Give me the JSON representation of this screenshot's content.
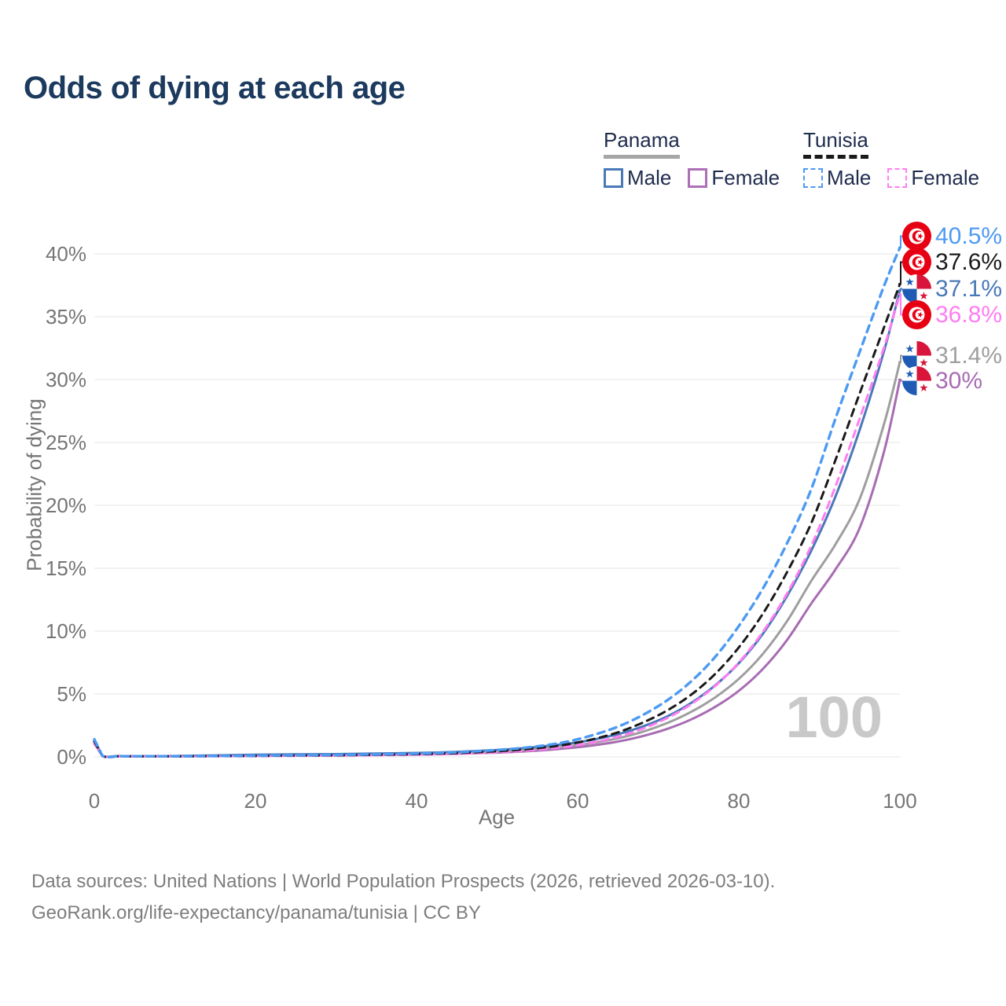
{
  "title": "Odds of dying at each age",
  "legend": {
    "groups": [
      {
        "name": "Panama",
        "line_color": "#a6a6a6",
        "line_style": "solid",
        "items": [
          {
            "label": "Male",
            "color": "#4a79b8"
          },
          {
            "label": "Female",
            "color": "#ad6fb5"
          }
        ]
      },
      {
        "name": "Tunisia",
        "line_color": "#1a1a1a",
        "line_style": "dashed",
        "items": [
          {
            "label": "Male",
            "color": "#4d9af2"
          },
          {
            "label": "Female",
            "color": "#ff7df2"
          }
        ]
      }
    ]
  },
  "chart_data": {
    "type": "line",
    "title": "Odds of dying at each age",
    "xlabel": "Age",
    "ylabel": "Probability of dying",
    "xlim": [
      0,
      100
    ],
    "ylim": [
      0,
      42
    ],
    "x_ticks": [
      0,
      20,
      40,
      60,
      80,
      100
    ],
    "y_ticks": [
      "0%",
      "5%",
      "10%",
      "15%",
      "20%",
      "25%",
      "30%",
      "35%",
      "40%"
    ],
    "grid": "horizontal",
    "legend_position": "top-right",
    "watermark": "100",
    "ages": [
      0,
      1,
      3,
      5,
      10,
      15,
      20,
      25,
      30,
      35,
      40,
      45,
      50,
      53,
      56,
      59,
      62,
      65,
      68,
      71,
      74,
      77,
      80,
      83,
      86,
      89,
      92,
      95,
      98,
      100
    ],
    "series": [
      {
        "name": "Panama Female",
        "country": "Panama",
        "sex": "Female",
        "color": "#a76cb2",
        "dash": "solid",
        "values": [
          1.05,
          0.08,
          0.05,
          0.04,
          0.05,
          0.06,
          0.08,
          0.1,
          0.12,
          0.15,
          0.19,
          0.25,
          0.34,
          0.42,
          0.54,
          0.7,
          0.92,
          1.22,
          1.64,
          2.2,
          2.95,
          3.95,
          5.25,
          7.0,
          9.3,
          12.2,
          14.9,
          18.2,
          24.2,
          30.0
        ],
        "end_value": 30.0
      },
      {
        "name": "Panama Both sexes",
        "country": "Panama",
        "sex": "Both",
        "color": "#9e9e9e",
        "dash": "solid",
        "values": [
          1.2,
          0.09,
          0.06,
          0.05,
          0.06,
          0.09,
          0.12,
          0.15,
          0.17,
          0.2,
          0.24,
          0.31,
          0.42,
          0.52,
          0.66,
          0.85,
          1.12,
          1.48,
          1.98,
          2.66,
          3.55,
          4.7,
          6.2,
          8.2,
          10.8,
          14.0,
          16.9,
          20.5,
          26.4,
          31.4
        ],
        "end_value": 31.4
      },
      {
        "name": "Panama Male",
        "country": "Panama",
        "sex": "Male",
        "color": "#4a79b8",
        "dash": "solid",
        "values": [
          1.3,
          0.1,
          0.07,
          0.06,
          0.07,
          0.12,
          0.17,
          0.2,
          0.22,
          0.26,
          0.31,
          0.4,
          0.55,
          0.68,
          0.86,
          1.06,
          1.38,
          1.8,
          2.4,
          3.18,
          4.25,
          5.65,
          7.45,
          9.8,
          12.8,
          16.4,
          20.7,
          26.0,
          32.2,
          37.1
        ],
        "end_value": 37.1
      },
      {
        "name": "Tunisia Female",
        "country": "Tunisia",
        "sex": "Female",
        "color": "#ff7df2",
        "dash": "dashed",
        "values": [
          1.1,
          0.07,
          0.04,
          0.04,
          0.04,
          0.05,
          0.06,
          0.08,
          0.1,
          0.13,
          0.17,
          0.24,
          0.36,
          0.47,
          0.62,
          0.84,
          1.16,
          1.6,
          2.22,
          3.05,
          4.15,
          5.6,
          7.5,
          9.95,
          13.0,
          16.8,
          21.5,
          26.9,
          32.5,
          36.8
        ],
        "end_value": 36.8
      },
      {
        "name": "Tunisia Both sexes",
        "country": "Tunisia",
        "sex": "Both",
        "color": "#1a1a1a",
        "dash": "dashed",
        "values": [
          1.25,
          0.08,
          0.04,
          0.04,
          0.04,
          0.06,
          0.08,
          0.11,
          0.13,
          0.17,
          0.22,
          0.3,
          0.45,
          0.58,
          0.76,
          1.02,
          1.42,
          1.95,
          2.7,
          3.65,
          4.9,
          6.55,
          8.7,
          11.4,
          14.7,
          18.6,
          23.6,
          28.9,
          34.1,
          37.6
        ],
        "end_value": 37.6
      },
      {
        "name": "Tunisia Male",
        "country": "Tunisia",
        "sex": "Male",
        "color": "#4d9af2",
        "dash": "dashed",
        "values": [
          1.4,
          0.09,
          0.05,
          0.05,
          0.05,
          0.07,
          0.1,
          0.13,
          0.16,
          0.2,
          0.26,
          0.36,
          0.55,
          0.7,
          0.92,
          1.25,
          1.75,
          2.4,
          3.3,
          4.45,
          5.95,
          7.9,
          10.4,
          13.4,
          17.0,
          21.3,
          26.9,
          32.2,
          37.4,
          40.5
        ],
        "end_value": 40.5
      }
    ],
    "end_labels": [
      {
        "text": "40.5%",
        "value": 40.5,
        "color": "#4d9af2",
        "flag": "tunisia",
        "series": "Tunisia Male"
      },
      {
        "text": "37.6%",
        "value": 37.6,
        "color": "#1a1a1a",
        "flag": "tunisia",
        "series": "Tunisia Both sexes"
      },
      {
        "text": "37.1%",
        "value": 37.1,
        "color": "#4a79b8",
        "flag": "panama",
        "series": "Panama Male"
      },
      {
        "text": "36.8%",
        "value": 36.8,
        "color": "#ff7df2",
        "flag": "tunisia",
        "series": "Tunisia Female"
      },
      {
        "text": "31.4%",
        "value": 31.4,
        "color": "#9e9e9e",
        "flag": "panama",
        "series": "Panama Both sexes"
      },
      {
        "text": "30%",
        "value": 30.0,
        "color": "#a76cb2",
        "flag": "panama",
        "series": "Panama Female"
      }
    ]
  },
  "footer": {
    "line1": "Data sources: United Nations | World Population Prospects (2026, retrieved 2026-03-10).",
    "line2": "GeoRank.org/life-expectancy/panama/tunisia | CC BY"
  }
}
